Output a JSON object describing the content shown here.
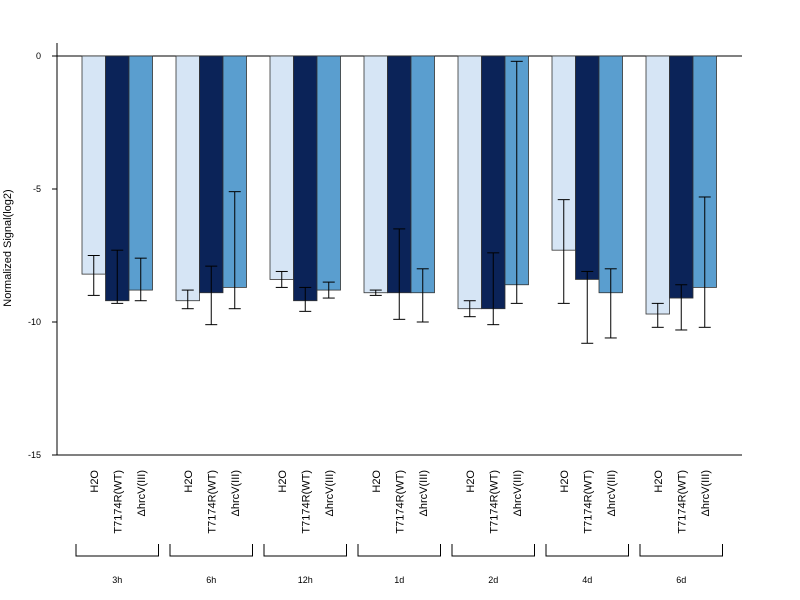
{
  "chart_data": {
    "type": "bar",
    "ylabel": "Normalized Signal(log2)",
    "ylim": [
      -15,
      0.5
    ],
    "yticks": [
      0,
      -5,
      -10,
      -15
    ],
    "ytick_labels": [
      "0",
      "-5",
      "-10",
      "-15"
    ],
    "groups": [
      "3h",
      "6h",
      "12h",
      "1d",
      "2d",
      "4d",
      "6d"
    ],
    "series": [
      {
        "name": "H2O",
        "color": "#d6e5f5",
        "values": [
          -8.2,
          -9.2,
          -8.4,
          -8.9,
          -9.5,
          -7.3,
          -9.7
        ],
        "err_low": [
          -9.0,
          -9.5,
          -8.7,
          -9.0,
          -9.8,
          -9.3,
          -10.2
        ],
        "err_high": [
          -7.5,
          -8.8,
          -8.1,
          -8.8,
          -9.2,
          -5.4,
          -9.3
        ]
      },
      {
        "name": "T7174R(WT)",
        "color": "#0b2358",
        "values": [
          -9.2,
          -8.9,
          -9.2,
          -8.9,
          -9.5,
          -8.4,
          -9.1
        ],
        "err_low": [
          -9.3,
          -10.1,
          -9.6,
          -9.9,
          -10.1,
          -10.8,
          -10.3
        ],
        "err_high": [
          -7.3,
          -7.9,
          -8.7,
          -6.5,
          -7.4,
          -8.1,
          -8.6
        ]
      },
      {
        "name": "ΔhrcV(III)",
        "color": "#5a9ecf",
        "values": [
          -8.8,
          -8.7,
          -8.8,
          -8.9,
          -8.6,
          -8.9,
          -8.7
        ],
        "err_low": [
          -9.2,
          -9.5,
          -9.1,
          -10.0,
          -9.3,
          -10.6,
          -10.2
        ],
        "err_high": [
          -7.6,
          -5.1,
          -8.5,
          -8.0,
          -0.2,
          -8.0,
          -5.3
        ]
      }
    ]
  }
}
